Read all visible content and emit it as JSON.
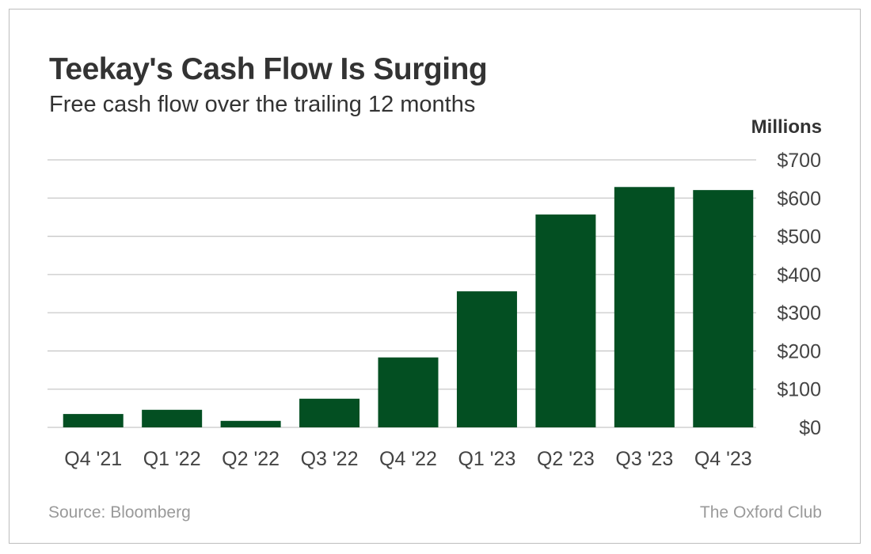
{
  "title": "Teekay's Cash Flow Is Surging",
  "subtitle": "Free cash flow over the trailing 12 months",
  "source": "Source: Bloomberg",
  "credit": "The Oxford Club",
  "chart_data": {
    "type": "bar",
    "title": "Teekay's Cash Flow Is Surging",
    "subtitle": "Free cash flow over the trailing 12 months",
    "ylabel": "Millions",
    "categories": [
      "Q4 '21",
      "Q1 '22",
      "Q2 '22",
      "Q3 '22",
      "Q4 '22",
      "Q1 '23",
      "Q2 '23",
      "Q3 '23",
      "Q4 '23"
    ],
    "values": [
      35,
      46,
      17,
      75,
      183,
      356,
      557,
      629,
      621
    ],
    "ylim": [
      0,
      700
    ],
    "yticks": [
      0,
      100,
      200,
      300,
      400,
      500,
      600,
      700
    ],
    "ytick_labels": [
      "$0",
      "$100",
      "$200",
      "$300",
      "$400",
      "$500",
      "$600",
      "$700"
    ],
    "y_axis_side": "right",
    "grid": true,
    "bar_color": "#034f22",
    "grid_color": "#c8c8c8"
  }
}
